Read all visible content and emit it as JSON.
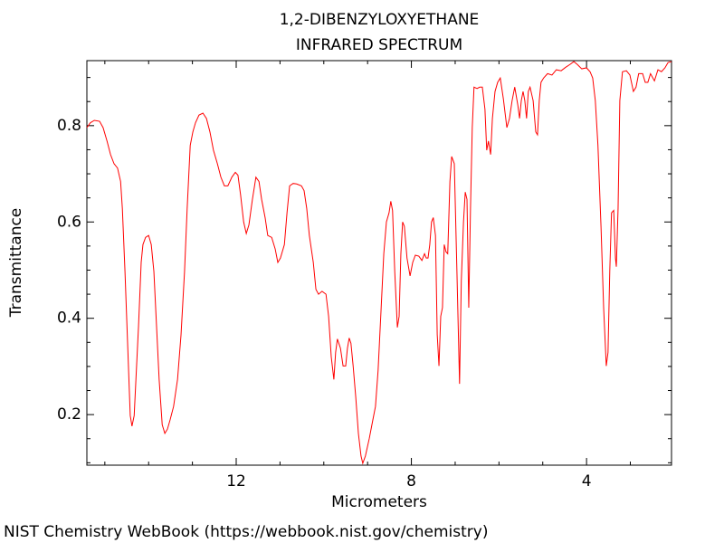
{
  "chart_data": {
    "type": "line",
    "title": "1,2-DIBENZYLOXYETHANE",
    "subtitle": "INFRARED SPECTRUM",
    "x_label": "Micrometers",
    "y_label": "Transmittance",
    "footer": "NIST Chemistry WebBook (https://webbook.nist.gov/chemistry)",
    "color": "#ff0000",
    "xlim": [
      15.41,
      2.06
    ],
    "xticks": [
      12,
      8,
      4
    ],
    "xminorticks": [
      15,
      14,
      13,
      11,
      10,
      9,
      7,
      6,
      5,
      3
    ],
    "ylim": [
      0.095,
      0.935
    ],
    "yticks": [
      0.2,
      0.4,
      0.6,
      0.8
    ],
    "yminorticks": [
      0.1,
      0.15,
      0.25,
      0.3,
      0.35,
      0.45,
      0.5,
      0.55,
      0.65,
      0.7,
      0.75,
      0.85,
      0.9
    ],
    "x": [
      15.41,
      15.33,
      15.24,
      15.12,
      15.04,
      14.95,
      14.87,
      14.79,
      14.71,
      14.64,
      14.6,
      14.54,
      14.48,
      14.42,
      14.38,
      14.33,
      14.29,
      14.23,
      14.17,
      14.13,
      14.07,
      14.0,
      13.94,
      13.88,
      13.82,
      13.76,
      13.69,
      13.63,
      13.57,
      13.51,
      13.43,
      13.34,
      13.26,
      13.18,
      13.12,
      13.05,
      12.99,
      12.93,
      12.85,
      12.76,
      12.68,
      12.6,
      12.52,
      12.43,
      12.35,
      12.27,
      12.19,
      12.1,
      12.02,
      11.96,
      11.9,
      11.83,
      11.77,
      11.71,
      11.63,
      11.55,
      11.48,
      11.42,
      11.34,
      11.28,
      11.19,
      11.11,
      11.05,
      10.99,
      10.9,
      10.84,
      10.78,
      10.7,
      10.62,
      10.51,
      10.45,
      10.39,
      10.33,
      10.24,
      10.18,
      10.12,
      10.04,
      9.95,
      9.89,
      9.83,
      9.77,
      9.73,
      9.69,
      9.62,
      9.56,
      9.5,
      9.46,
      9.42,
      9.38,
      9.33,
      9.27,
      9.21,
      9.15,
      9.11,
      9.05,
      8.96,
      8.88,
      8.82,
      8.76,
      8.69,
      8.63,
      8.57,
      8.51,
      8.47,
      8.43,
      8.38,
      8.32,
      8.28,
      8.24,
      8.2,
      8.16,
      8.1,
      8.03,
      7.97,
      7.91,
      7.83,
      7.76,
      7.7,
      7.66,
      7.62,
      7.58,
      7.54,
      7.5,
      7.45,
      7.41,
      7.37,
      7.33,
      7.29,
      7.25,
      7.21,
      7.17,
      7.12,
      7.08,
      7.02,
      6.96,
      6.9,
      6.86,
      6.81,
      6.77,
      6.73,
      6.69,
      6.65,
      6.61,
      6.57,
      6.5,
      6.44,
      6.38,
      6.32,
      6.28,
      6.24,
      6.19,
      6.15,
      6.09,
      6.03,
      5.97,
      5.9,
      5.82,
      5.76,
      5.7,
      5.64,
      5.57,
      5.53,
      5.49,
      5.45,
      5.41,
      5.37,
      5.33,
      5.29,
      5.22,
      5.16,
      5.12,
      5.08,
      5.04,
      4.98,
      4.89,
      4.79,
      4.69,
      4.58,
      4.48,
      4.38,
      4.29,
      4.21,
      4.11,
      4.0,
      3.92,
      3.86,
      3.8,
      3.74,
      3.67,
      3.61,
      3.55,
      3.51,
      3.47,
      3.43,
      3.38,
      3.34,
      3.32,
      3.28,
      3.24,
      3.18,
      3.09,
      3.01,
      2.93,
      2.87,
      2.81,
      2.72,
      2.66,
      2.6,
      2.54,
      2.45,
      2.37,
      2.29,
      2.21,
      2.14,
      2.06
    ],
    "values": [
      0.796,
      0.806,
      0.811,
      0.809,
      0.796,
      0.768,
      0.74,
      0.721,
      0.712,
      0.684,
      0.628,
      0.497,
      0.348,
      0.198,
      0.176,
      0.198,
      0.273,
      0.385,
      0.516,
      0.553,
      0.568,
      0.572,
      0.553,
      0.497,
      0.385,
      0.273,
      0.179,
      0.161,
      0.17,
      0.189,
      0.217,
      0.273,
      0.366,
      0.497,
      0.628,
      0.759,
      0.787,
      0.806,
      0.822,
      0.826,
      0.815,
      0.787,
      0.749,
      0.721,
      0.693,
      0.675,
      0.675,
      0.693,
      0.703,
      0.697,
      0.656,
      0.6,
      0.576,
      0.594,
      0.647,
      0.693,
      0.684,
      0.647,
      0.609,
      0.572,
      0.568,
      0.544,
      0.516,
      0.525,
      0.553,
      0.619,
      0.675,
      0.68,
      0.679,
      0.675,
      0.665,
      0.628,
      0.572,
      0.516,
      0.46,
      0.45,
      0.456,
      0.45,
      0.404,
      0.32,
      0.273,
      0.329,
      0.357,
      0.338,
      0.301,
      0.301,
      0.338,
      0.359,
      0.348,
      0.301,
      0.236,
      0.161,
      0.114,
      0.099,
      0.114,
      0.151,
      0.189,
      0.217,
      0.292,
      0.422,
      0.534,
      0.6,
      0.619,
      0.643,
      0.624,
      0.497,
      0.381,
      0.404,
      0.534,
      0.6,
      0.591,
      0.525,
      0.488,
      0.516,
      0.531,
      0.529,
      0.52,
      0.534,
      0.525,
      0.525,
      0.553,
      0.6,
      0.609,
      0.572,
      0.366,
      0.301,
      0.404,
      0.422,
      0.553,
      0.538,
      0.534,
      0.684,
      0.736,
      0.721,
      0.497,
      0.264,
      0.478,
      0.6,
      0.662,
      0.647,
      0.422,
      0.628,
      0.796,
      0.88,
      0.877,
      0.88,
      0.88,
      0.834,
      0.749,
      0.768,
      0.74,
      0.815,
      0.871,
      0.89,
      0.899,
      0.856,
      0.796,
      0.815,
      0.852,
      0.88,
      0.843,
      0.815,
      0.852,
      0.871,
      0.852,
      0.815,
      0.871,
      0.88,
      0.852,
      0.787,
      0.781,
      0.852,
      0.89,
      0.899,
      0.908,
      0.905,
      0.916,
      0.914,
      0.921,
      0.927,
      0.933,
      0.927,
      0.918,
      0.92,
      0.912,
      0.899,
      0.852,
      0.759,
      0.591,
      0.422,
      0.301,
      0.329,
      0.497,
      0.619,
      0.624,
      0.525,
      0.507,
      0.628,
      0.852,
      0.912,
      0.914,
      0.905,
      0.871,
      0.88,
      0.908,
      0.908,
      0.89,
      0.89,
      0.908,
      0.893,
      0.916,
      0.912,
      0.92,
      0.931,
      0.933
    ]
  }
}
